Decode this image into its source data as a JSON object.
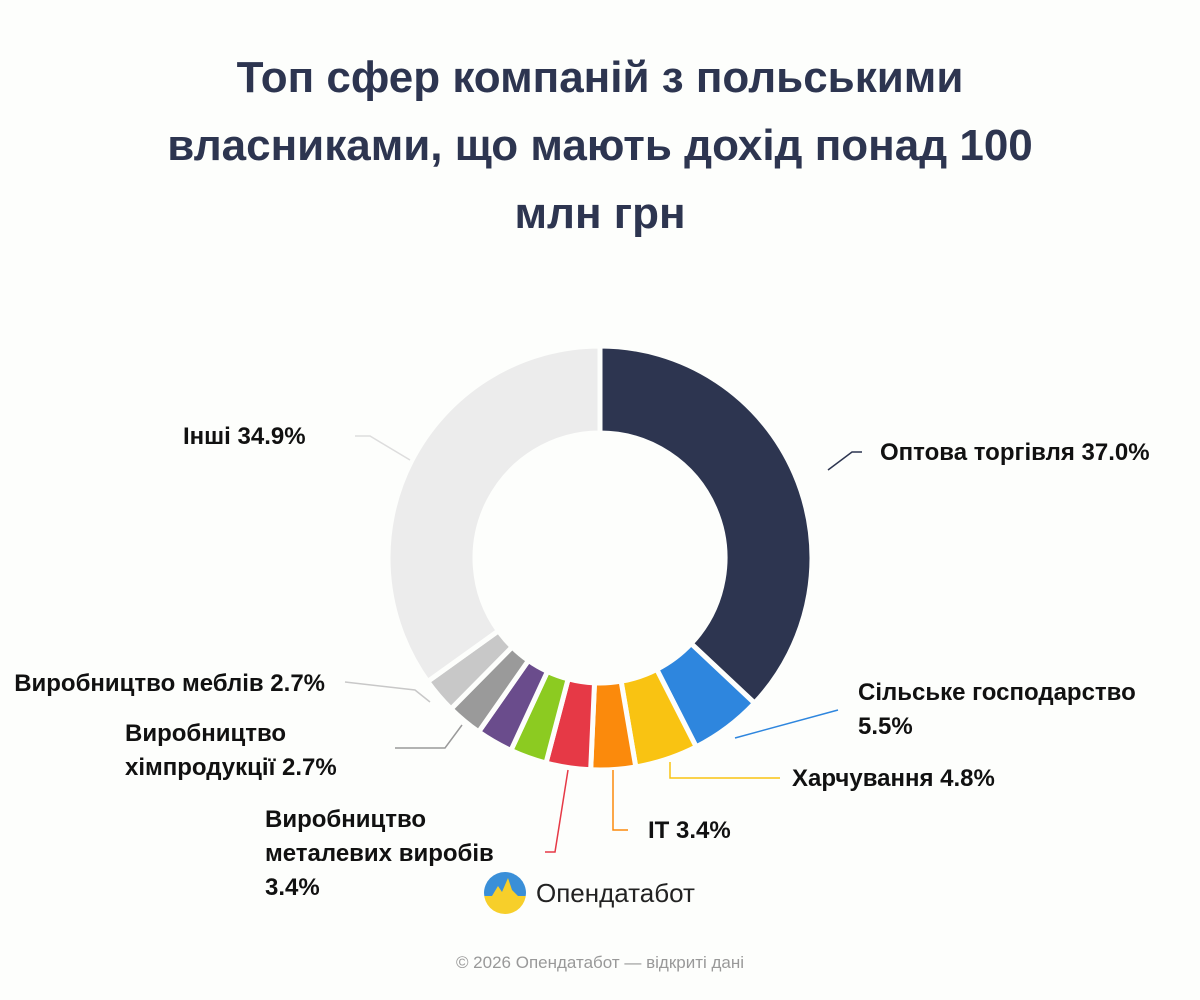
{
  "chart_data": {
    "type": "pie",
    "title": "Топ сфер компаній з польськими власниками, що мають дохід понад 100 млн грн",
    "categories": [
      "Оптова торгівля",
      "Сільське господарство",
      "Харчування",
      "IT",
      "Виробництво металевих виробів",
      null,
      null,
      "Виробництво хімпродукції",
      "Виробництво меблів",
      "Інші"
    ],
    "values": [
      37.0,
      5.5,
      4.8,
      3.4,
      3.4,
      2.8,
      2.8,
      2.7,
      2.7,
      34.9
    ],
    "value_labels": [
      "37.0%",
      "5.5%",
      "4.8%",
      "3.4%",
      "3.4%",
      null,
      null,
      "2.7%",
      "2.7%",
      "34.9%"
    ],
    "colors": [
      "#2d3550",
      "#2e86de",
      "#f9c312",
      "#fb8a0c",
      "#e63946",
      "#8ccb21",
      "#6a4c8c",
      "#9a9a9a",
      "#c8c8c8",
      "#ececec"
    ]
  },
  "logo": "Опендатабот",
  "footer": "© 2026 Опендатабот — відкриті дані"
}
